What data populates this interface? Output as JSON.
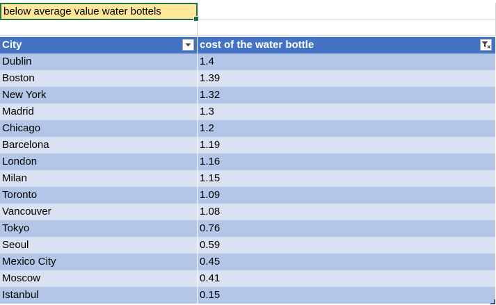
{
  "title_cell": "below average value water bottels",
  "table": {
    "headers": [
      "City",
      "cost of the water bottle"
    ],
    "rows": [
      [
        "Dublin",
        "1.4"
      ],
      [
        "Boston",
        "1.39"
      ],
      [
        "New York",
        "1.32"
      ],
      [
        "Madrid",
        "1.3"
      ],
      [
        "Chicago",
        "1.2"
      ],
      [
        "Barcelona",
        "1.19"
      ],
      [
        "London",
        "1.16"
      ],
      [
        "Milan",
        "1.15"
      ],
      [
        "Toronto",
        "1.09"
      ],
      [
        "Vancouver",
        "1.08"
      ],
      [
        "Tokyo",
        "0.76"
      ],
      [
        "Seoul",
        "0.59"
      ],
      [
        "Mexico City",
        "0.45"
      ],
      [
        "Moscow",
        "0.41"
      ],
      [
        "Istanbul",
        "0.15"
      ]
    ],
    "column_filters": [
      "dropdown-arrow-icon",
      "filter-funnel-icon"
    ]
  },
  "colors": {
    "header": "#4472c4",
    "band_dark": "#b4c6e7",
    "band_light": "#d9e1f2",
    "title_fill": "#ffe699",
    "selection": "#217346"
  }
}
